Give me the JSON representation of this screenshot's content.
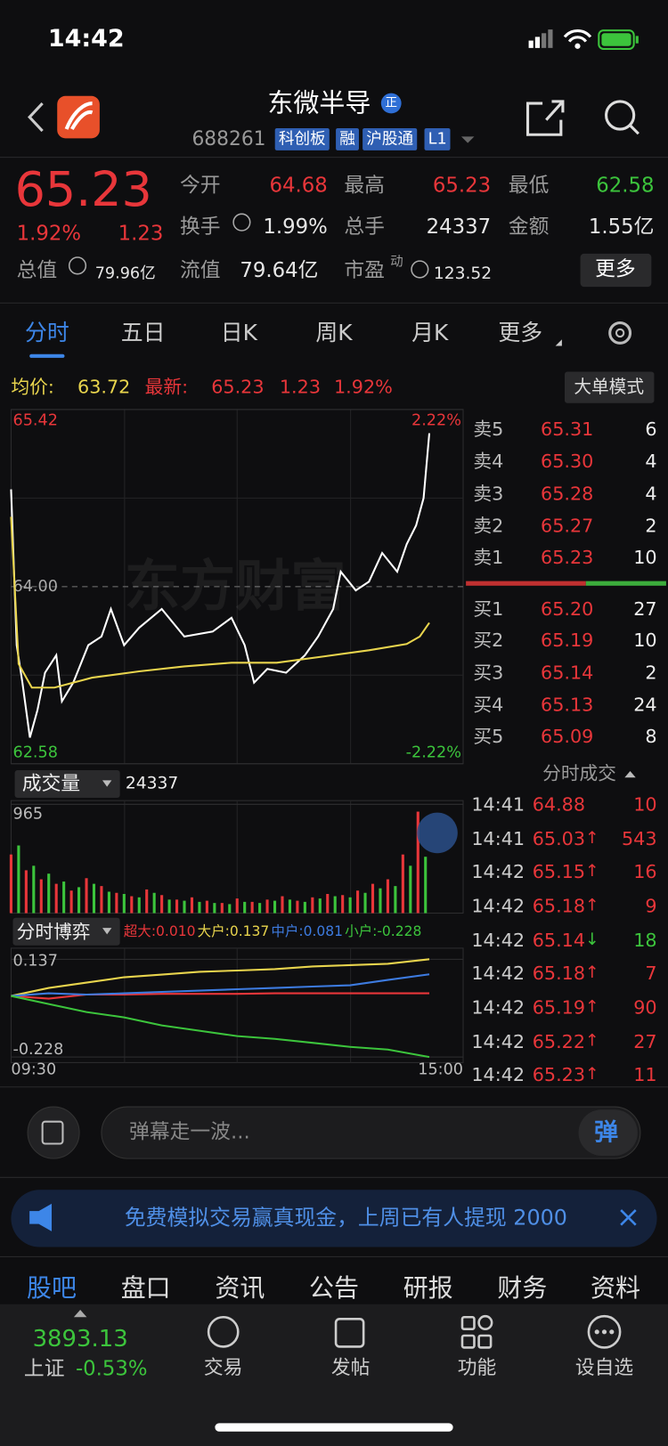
{
  "status": {
    "time": "14:42"
  },
  "header": {
    "title": "东微半导",
    "badge": "正",
    "code": "688261",
    "tags": [
      "科创板",
      "融",
      "沪股通",
      "L1"
    ]
  },
  "quote": {
    "price": "65.23",
    "pct": "1.92%",
    "change": "1.23",
    "open_label": "今开",
    "open": "64.68",
    "high_label": "最高",
    "high": "65.23",
    "low_label": "最低",
    "low": "62.58",
    "turnover_label": "换手",
    "turnover": "1.99%",
    "volume_label": "总手",
    "volume": "24337",
    "amount_label": "金额",
    "amount": "1.55亿",
    "mcap_label": "总值",
    "mcap": "79.96亿",
    "float_label": "流值",
    "float": "79.64亿",
    "pe_label": "市盈",
    "pe_sup": "动",
    "pe": "123.52",
    "more": "更多"
  },
  "tabs": [
    "分时",
    "五日",
    "日K",
    "周K",
    "月K",
    "更多"
  ],
  "info": {
    "avg_label": "均价:",
    "avg": "63.72",
    "last_label": "最新:",
    "last": "65.23",
    "change": "1.23",
    "pct": "1.92%",
    "mode": "大单模式"
  },
  "watermark": "东方财富",
  "chart_data": [
    {
      "type": "line",
      "ylim": [
        62.58,
        65.42
      ],
      "yticks": [
        65.42,
        {
          "value": 64,
          "label": "64.00"
        },
        62.58
      ],
      "y2lim": [
        -2.22,
        2.22
      ],
      "y2ticks": [
        {
          "value": 2.22,
          "label": "2.22%"
        },
        {
          "value": -2.22,
          "label": "-2.22%"
        }
      ],
      "xlim": [
        0,
        240
      ],
      "series": [
        {
          "color": "#ffffff",
          "x": [
            0,
            3,
            6,
            10,
            14,
            18,
            24,
            27,
            33,
            41,
            48,
            53,
            60,
            68,
            80,
            92,
            107,
            117,
            124,
            129,
            136,
            146,
            156,
            163,
            171,
            175,
            183,
            190,
            197,
            205,
            210,
            215,
            219,
            222
          ],
          "values": [
            64.78,
            63.53,
            63.23,
            62.79,
            63.01,
            63.31,
            63.45,
            63.08,
            63.23,
            63.53,
            63.6,
            63.82,
            63.53,
            63.67,
            63.82,
            63.6,
            63.64,
            63.75,
            63.53,
            63.23,
            63.34,
            63.31,
            63.45,
            63.6,
            63.82,
            64.12,
            63.97,
            64.04,
            64.27,
            64.12,
            64.34,
            64.49,
            64.71,
            65.23
          ]
        },
        {
          "color": "#e8d44d",
          "x": [
            0,
            4,
            11,
            23,
            43,
            68,
            92,
            117,
            141,
            166,
            190,
            210,
            217,
            222
          ],
          "values": [
            64.56,
            63.38,
            63.19,
            63.19,
            63.27,
            63.32,
            63.36,
            63.39,
            63.39,
            63.44,
            63.49,
            63.54,
            63.6,
            63.71
          ]
        }
      ]
    },
    {
      "type": "bar",
      "title": "成交量",
      "total": "24337",
      "ylim": [
        0,
        965
      ],
      "yticks": [
        965
      ],
      "xlim": [
        0,
        240
      ],
      "series": [
        {
          "color": "#e8363a",
          "x": [
            0,
            8,
            16,
            24,
            32,
            40,
            48,
            56,
            64,
            72,
            80,
            88,
            96,
            104,
            112,
            120,
            128,
            136,
            144,
            152,
            160,
            168,
            176,
            184,
            192,
            200,
            208,
            216
          ],
          "values": [
            520,
            380,
            300,
            260,
            200,
            310,
            240,
            180,
            150,
            210,
            160,
            120,
            140,
            110,
            90,
            130,
            100,
            120,
            150,
            110,
            140,
            170,
            160,
            200,
            260,
            300,
            520,
            900
          ]
        },
        {
          "color": "#3cc43c",
          "x": [
            4,
            12,
            20,
            28,
            36,
            44,
            52,
            60,
            68,
            76,
            84,
            92,
            100,
            108,
            116,
            124,
            132,
            140,
            148,
            156,
            164,
            172,
            180,
            188,
            196,
            204,
            212,
            220
          ],
          "values": [
            600,
            420,
            350,
            280,
            230,
            260,
            190,
            170,
            140,
            180,
            120,
            110,
            100,
            90,
            80,
            100,
            90,
            110,
            120,
            100,
            130,
            150,
            140,
            180,
            220,
            240,
            420,
            500
          ]
        }
      ]
    },
    {
      "type": "line",
      "title": "分时博弈",
      "ylim": [
        -0.228,
        0.137
      ],
      "yticks": [
        0.137,
        -0.228
      ],
      "xlim": [
        0,
        240
      ],
      "xticks": [
        {
          "value": 0,
          "label": "09:30"
        },
        {
          "value": 240,
          "label": "15:00"
        }
      ],
      "series": [
        {
          "name": "超大:0.010",
          "color": "#e8363a",
          "x": [
            0,
            20,
            40,
            60,
            80,
            100,
            120,
            140,
            160,
            180,
            200,
            222
          ],
          "values": [
            0,
            -0.01,
            0.005,
            0.005,
            0.008,
            0.008,
            0.008,
            0.01,
            0.01,
            0.01,
            0.01,
            0.01
          ]
        },
        {
          "name": "大户:0.137",
          "color": "#e8d44d",
          "x": [
            0,
            20,
            40,
            60,
            80,
            100,
            120,
            140,
            160,
            180,
            200,
            222
          ],
          "values": [
            0,
            0.03,
            0.05,
            0.07,
            0.08,
            0.09,
            0.095,
            0.1,
            0.11,
            0.115,
            0.12,
            0.137
          ]
        },
        {
          "name": "中户:0.081",
          "color": "#3d7be0",
          "x": [
            0,
            20,
            40,
            60,
            80,
            100,
            120,
            140,
            160,
            180,
            200,
            222
          ],
          "values": [
            0,
            0.01,
            0.005,
            0.01,
            0.015,
            0.02,
            0.025,
            0.03,
            0.035,
            0.04,
            0.06,
            0.081
          ]
        },
        {
          "name": "小户:-0.228",
          "color": "#3cc43c",
          "x": [
            0,
            20,
            40,
            60,
            80,
            100,
            120,
            140,
            160,
            180,
            200,
            222
          ],
          "values": [
            0,
            -0.03,
            -0.06,
            -0.08,
            -0.11,
            -0.13,
            -0.15,
            -0.16,
            -0.175,
            -0.19,
            -0.2,
            -0.228
          ]
        }
      ]
    }
  ],
  "order_book": {
    "asks": [
      {
        "label": "卖5",
        "price": "65.31",
        "qty": "6"
      },
      {
        "label": "卖4",
        "price": "65.30",
        "qty": "4"
      },
      {
        "label": "卖3",
        "price": "65.28",
        "qty": "4"
      },
      {
        "label": "卖2",
        "price": "65.27",
        "qty": "2"
      },
      {
        "label": "卖1",
        "price": "65.23",
        "qty": "10"
      }
    ],
    "bids": [
      {
        "label": "买1",
        "price": "65.20",
        "qty": "27"
      },
      {
        "label": "买2",
        "price": "65.19",
        "qty": "10"
      },
      {
        "label": "买3",
        "price": "65.14",
        "qty": "2"
      },
      {
        "label": "买4",
        "price": "65.13",
        "qty": "24"
      },
      {
        "label": "买5",
        "price": "65.09",
        "qty": "8"
      }
    ]
  },
  "trades_title": "分时成交",
  "trades": [
    {
      "time": "14:41",
      "price": "64.88",
      "qty": "10"
    },
    {
      "time": "14:41",
      "price": "65.03",
      "dir": "↑",
      "qty": "543"
    },
    {
      "time": "14:42",
      "price": "65.15",
      "dir": "↑",
      "qty": "16"
    },
    {
      "time": "14:42",
      "price": "65.18",
      "dir": "↑",
      "qty": "9"
    },
    {
      "time": "14:42",
      "price": "65.14",
      "dir": "↓",
      "qty": "18"
    },
    {
      "time": "14:42",
      "price": "65.18",
      "dir": "↑",
      "qty": "7"
    },
    {
      "time": "14:42",
      "price": "65.19",
      "dir": "↑",
      "qty": "90"
    },
    {
      "time": "14:42",
      "price": "65.22",
      "dir": "↑",
      "qty": "27"
    },
    {
      "time": "14:42",
      "price": "65.23",
      "dir": "↑",
      "qty": "11"
    }
  ],
  "comment": {
    "placeholder": "弹幕走一波...",
    "button": "弹"
  },
  "banner": "免费模拟交易赢真现金，上周已有人提现 2000",
  "sections": [
    "股吧",
    "盘口",
    "资讯",
    "公告",
    "研报",
    "财务",
    "资料"
  ],
  "tabbar": {
    "index_value": "3893.13",
    "index_name": "上证",
    "index_pct": "-0.53%",
    "items": [
      "交易",
      "发帖",
      "功能",
      "设自选"
    ]
  }
}
